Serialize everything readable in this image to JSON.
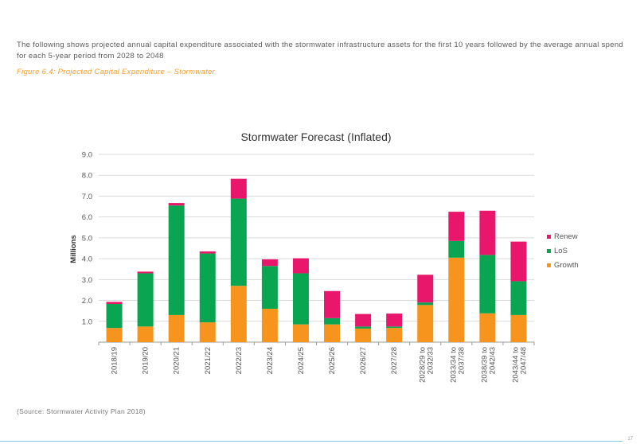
{
  "intro_text": "The following shows projected annual capital expenditure associated with the stormwater infrastructure assets for the first 10 years followed by the average annual spend for each 5-year period from 2028 to 2048",
  "figure_caption": "Figure 6.4: Projected Capital Expenditure – Stormwater",
  "source_text": "(Source: Stormwater Activity Plan 2018)",
  "page_number": "17",
  "chart_data": {
    "type": "bar",
    "stacked": true,
    "title": "Stormwater Forecast (Inflated)",
    "xlabel": "",
    "ylabel": "Millions",
    "ylim": [
      0,
      9
    ],
    "yticks": [
      "",
      "1.0",
      "2.0",
      "3.0",
      "4.0",
      "5.0",
      "6.0",
      "7.0",
      "8.0",
      "9.0"
    ],
    "grid": true,
    "legend_position": "right",
    "categories": [
      "2018/19",
      "2019/20",
      "2020/21",
      "2021/22",
      "2022/23",
      "2023/24",
      "2024/25",
      "2025/26",
      "2026/27",
      "2027/28",
      "2028/29 to 2032/33",
      "2033/34 to 2037/38",
      "2038/39 to 2042/43",
      "2043/44 to 2047/48"
    ],
    "series": [
      {
        "name": "Growth",
        "color": "#f7941d",
        "values": [
          0.68,
          0.75,
          1.3,
          0.95,
          2.7,
          1.6,
          0.85,
          0.85,
          0.65,
          0.68,
          1.78,
          4.05,
          1.38,
          1.3
        ]
      },
      {
        "name": "LoS",
        "color": "#0aa550",
        "values": [
          1.15,
          2.55,
          5.25,
          3.3,
          4.18,
          2.05,
          2.45,
          0.3,
          0.1,
          0.07,
          0.12,
          0.8,
          2.8,
          1.62
        ]
      },
      {
        "name": "Renew",
        "color": "#e8176b",
        "values": [
          0.1,
          0.08,
          0.12,
          0.1,
          0.95,
          0.32,
          0.72,
          1.3,
          0.6,
          0.62,
          1.33,
          1.4,
          2.12,
          1.9
        ]
      }
    ],
    "legend_order": [
      "Renew",
      "LoS",
      "Growth"
    ]
  }
}
